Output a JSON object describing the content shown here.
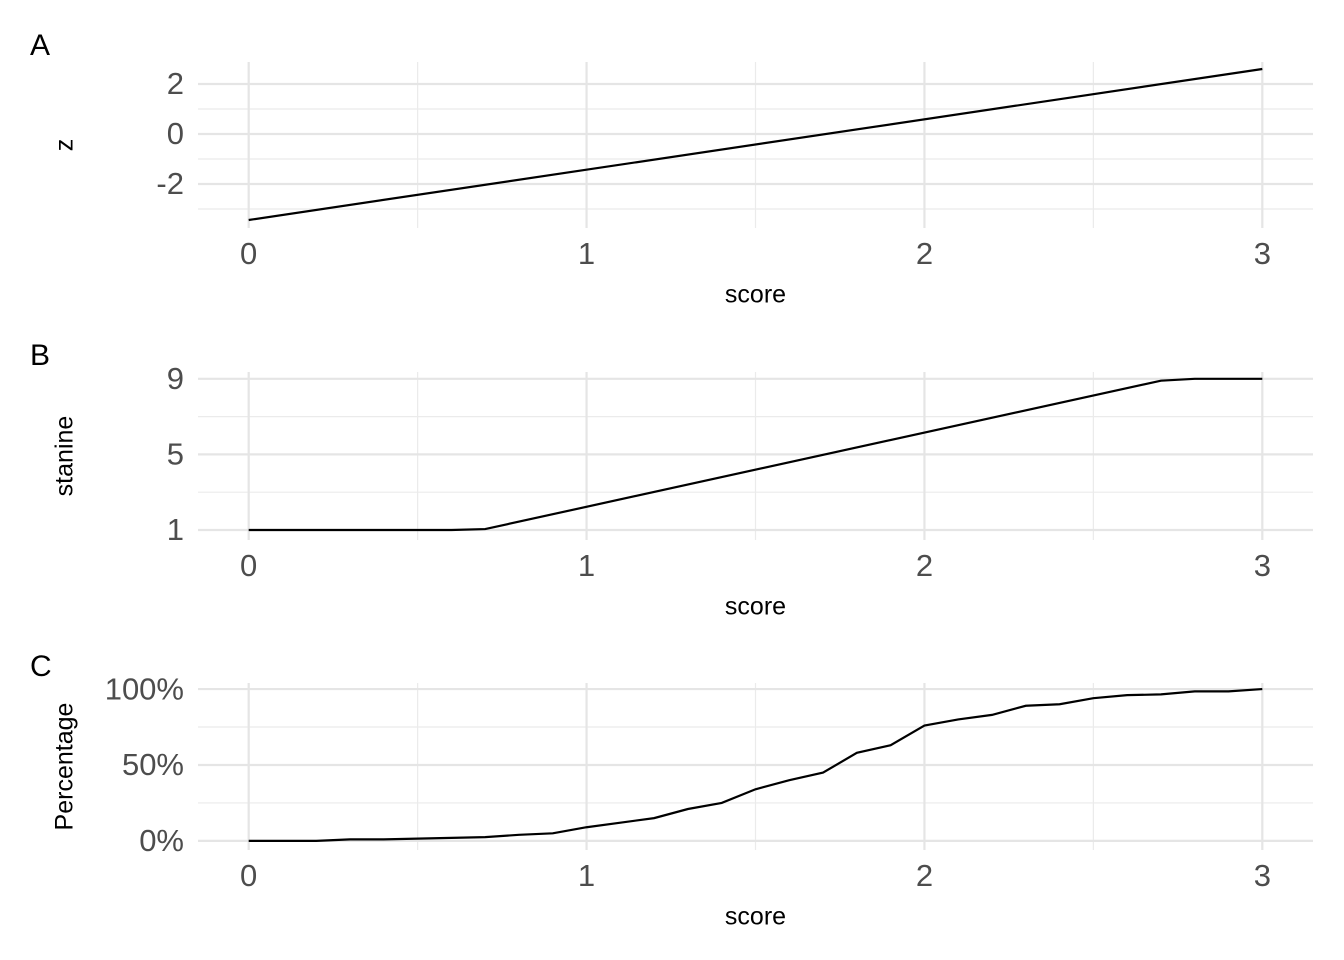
{
  "chart_data": [
    {
      "type": "line",
      "tag": "A",
      "xlabel": "score",
      "ylabel": "z",
      "color": "#000000",
      "grid": true,
      "x": [
        0,
        3
      ],
      "values": [
        -3.44,
        2.6
      ],
      "xlim": [
        -0.15,
        3.15
      ],
      "xticks": [
        0,
        1,
        2,
        3
      ],
      "xticks_minor": [
        0.5,
        1.5,
        2.5
      ],
      "ylim": [
        -3.76,
        2.88
      ],
      "yticks": [
        -2,
        0,
        2
      ],
      "yticks_minor": [
        -3,
        -1,
        1
      ]
    },
    {
      "type": "line",
      "tag": "B",
      "xlabel": "score",
      "ylabel": "stanine",
      "color": "#000000",
      "grid": true,
      "x": [
        0,
        0.6,
        0.7,
        2.7,
        2.8,
        3
      ],
      "values": [
        1,
        1,
        1.05,
        8.9,
        9,
        9
      ],
      "xlim": [
        -0.15,
        3.15
      ],
      "xticks": [
        0,
        1,
        2,
        3
      ],
      "xticks_minor": [
        0.5,
        1.5,
        2.5
      ],
      "ylim": [
        0.47,
        9.36
      ],
      "yticks": [
        1,
        5,
        9
      ],
      "yticks_minor": [
        3,
        7
      ]
    },
    {
      "type": "line",
      "tag": "C",
      "xlabel": "score",
      "ylabel": "Percentage",
      "color": "#000000",
      "grid": true,
      "x": [
        0,
        0.1,
        0.2,
        0.3,
        0.4,
        0.5,
        0.6,
        0.7,
        0.8,
        0.9,
        1.0,
        1.1,
        1.2,
        1.3,
        1.4,
        1.5,
        1.6,
        1.7,
        1.8,
        1.9,
        2.0,
        2.1,
        2.2,
        2.3,
        2.4,
        2.5,
        2.6,
        2.7,
        2.8,
        2.9,
        3.0
      ],
      "values": [
        0,
        0,
        0,
        1,
        1,
        1.5,
        2,
        2.5,
        4,
        5,
        9,
        12,
        15,
        21,
        25,
        34,
        40,
        45,
        58,
        63,
        76,
        80,
        83,
        89,
        90,
        94,
        96,
        96.5,
        98.5,
        98.5,
        100
      ],
      "xlim": [
        -0.15,
        3.15
      ],
      "xticks": [
        0,
        1,
        2,
        3
      ],
      "xticks_minor": [
        0.5,
        1.5,
        2.5
      ],
      "ylim": [
        -6,
        104
      ],
      "yticks": [
        {
          "value": 0,
          "label": "0%"
        },
        {
          "value": 50,
          "label": "50%"
        },
        {
          "value": 100,
          "label": "100%"
        }
      ],
      "yticks_minor": [
        25,
        75
      ]
    }
  ]
}
